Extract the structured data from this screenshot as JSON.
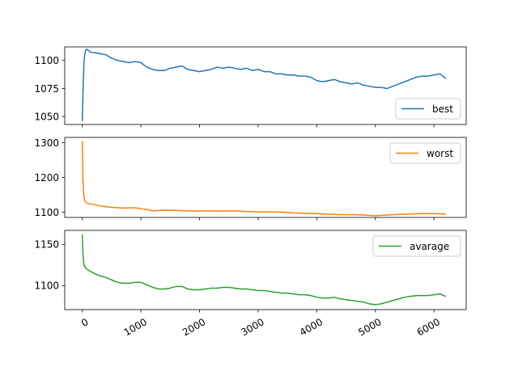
{
  "chart_data": [
    {
      "type": "line",
      "xlim": [
        -300,
        6550
      ],
      "ylim": [
        1043,
        1112
      ],
      "yticks": [
        1050,
        1075,
        1100
      ],
      "xticks": [
        0,
        1000,
        2000,
        3000,
        4000,
        5000,
        6000
      ],
      "show_xtick_labels": false,
      "legend": "lower-right",
      "grid": false,
      "series": [
        {
          "name": "best",
          "color": "#1f77b4",
          "x": [
            0,
            15,
            30,
            50,
            70,
            100,
            150,
            200,
            300,
            400,
            500,
            600,
            700,
            800,
            900,
            1000,
            1100,
            1200,
            1300,
            1400,
            1500,
            1600,
            1700,
            1800,
            1900,
            2000,
            2100,
            2200,
            2300,
            2400,
            2500,
            2600,
            2700,
            2800,
            2900,
            3000,
            3100,
            3200,
            3300,
            3400,
            3500,
            3600,
            3700,
            3800,
            3900,
            4000,
            4100,
            4200,
            4300,
            4400,
            4500,
            4600,
            4700,
            4800,
            4900,
            5000,
            5100,
            5200,
            5300,
            5400,
            5500,
            5600,
            5700,
            5800,
            5900,
            6000,
            6100,
            6200
          ],
          "y": [
            1046,
            1080,
            1100,
            1108,
            1110,
            1109,
            1107,
            1107,
            1106,
            1105,
            1102,
            1100,
            1099,
            1098,
            1099,
            1098,
            1094,
            1092,
            1091,
            1091,
            1093,
            1094,
            1095,
            1092,
            1091,
            1090,
            1091,
            1092,
            1094,
            1093,
            1094,
            1093,
            1092,
            1093,
            1091,
            1092,
            1090,
            1090,
            1088,
            1088,
            1087,
            1087,
            1086,
            1086,
            1085,
            1082,
            1081,
            1082,
            1083,
            1081,
            1080,
            1079,
            1080,
            1078,
            1077,
            1076,
            1076,
            1075,
            1077,
            1079,
            1081,
            1083,
            1085,
            1086,
            1086,
            1087,
            1088,
            1084
          ]
        }
      ]
    },
    {
      "type": "line",
      "xlim": [
        -300,
        6550
      ],
      "ylim": [
        1085,
        1315
      ],
      "yticks": [
        1100,
        1200,
        1300
      ],
      "xticks": [
        0,
        1000,
        2000,
        3000,
        4000,
        5000,
        6000
      ],
      "show_xtick_labels": false,
      "legend": "upper-right",
      "grid": false,
      "series": [
        {
          "name": "worst",
          "color": "#ff7f0e",
          "x": [
            0,
            5,
            10,
            20,
            30,
            50,
            80,
            120,
            200,
            300,
            400,
            500,
            700,
            900,
            1000,
            1100,
            1200,
            1400,
            1600,
            1800,
            2000,
            2200,
            2400,
            2600,
            2800,
            3000,
            3200,
            3400,
            3600,
            3800,
            4000,
            4200,
            4400,
            4600,
            4800,
            5000,
            5200,
            5400,
            5600,
            5800,
            6000,
            6200
          ],
          "y": [
            1305,
            1260,
            1200,
            1160,
            1140,
            1130,
            1126,
            1124,
            1122,
            1118,
            1116,
            1114,
            1112,
            1113,
            1110,
            1108,
            1104,
            1106,
            1105,
            1104,
            1103,
            1104,
            1103,
            1104,
            1102,
            1101,
            1101,
            1100,
            1098,
            1097,
            1096,
            1094,
            1093,
            1093,
            1092,
            1090,
            1092,
            1094,
            1095,
            1096,
            1096,
            1095
          ]
        }
      ]
    },
    {
      "type": "line",
      "xlim": [
        -300,
        6550
      ],
      "ylim": [
        1071,
        1167
      ],
      "yticks": [
        1100,
        1150
      ],
      "xticks": [
        0,
        1000,
        2000,
        3000,
        4000,
        5000,
        6000
      ],
      "xtick_labels": [
        "0",
        "1000",
        "2000",
        "3000",
        "4000",
        "5000",
        "6000"
      ],
      "show_xtick_labels": true,
      "legend": "upper-right",
      "grid": false,
      "series": [
        {
          "name": "avarage",
          "color": "#2ca02c",
          "x": [
            0,
            5,
            10,
            20,
            30,
            50,
            80,
            120,
            200,
            300,
            400,
            500,
            600,
            700,
            800,
            900,
            1000,
            1100,
            1200,
            1300,
            1400,
            1500,
            1600,
            1700,
            1800,
            1900,
            2000,
            2100,
            2200,
            2300,
            2400,
            2500,
            2600,
            2700,
            2800,
            2900,
            3000,
            3100,
            3200,
            3300,
            3400,
            3500,
            3600,
            3700,
            3800,
            3900,
            4000,
            4100,
            4200,
            4300,
            4400,
            4500,
            4600,
            4700,
            4800,
            4900,
            5000,
            5100,
            5200,
            5300,
            5400,
            5500,
            5600,
            5700,
            5800,
            5900,
            6000,
            6100,
            6200
          ],
          "y": [
            1162,
            1150,
            1140,
            1130,
            1125,
            1122,
            1120,
            1118,
            1115,
            1112,
            1110,
            1107,
            1104,
            1103,
            1103,
            1104,
            1104,
            1101,
            1098,
            1096,
            1096,
            1097,
            1099,
            1099,
            1096,
            1095,
            1095,
            1096,
            1097,
            1097,
            1098,
            1098,
            1097,
            1096,
            1096,
            1095,
            1094,
            1094,
            1093,
            1092,
            1091,
            1091,
            1090,
            1089,
            1089,
            1088,
            1086,
            1085,
            1085,
            1086,
            1084,
            1083,
            1082,
            1081,
            1080,
            1078,
            1077,
            1078,
            1080,
            1082,
            1084,
            1086,
            1087,
            1088,
            1088,
            1088,
            1089,
            1090,
            1087
          ]
        }
      ]
    }
  ]
}
